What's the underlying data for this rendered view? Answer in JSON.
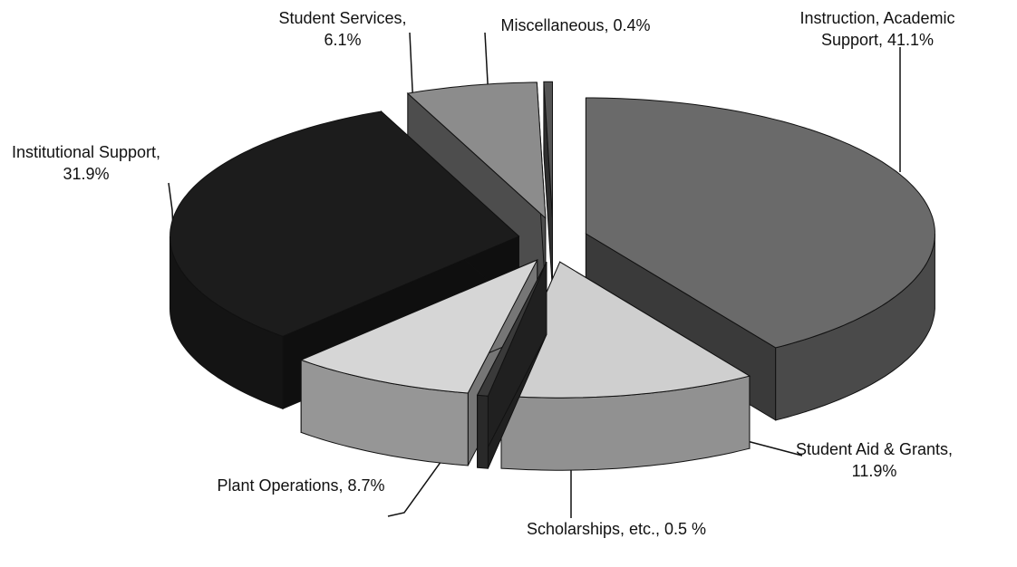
{
  "chart_data": {
    "type": "pie3d",
    "categories": [
      "Instruction,  Academic Support",
      "Student Aid & Grants",
      "Scholarships, etc.",
      "Plant Operations",
      "Institutional Support",
      "Student Services",
      "Miscellaneous"
    ],
    "values": [
      41.1,
      11.9,
      0.5,
      8.7,
      31.9,
      6.1,
      0.4
    ],
    "value_labels": [
      "Instruction,  Academic Support, 41.1%",
      "Student Aid & Grants, 11.9%",
      "Scholarships, etc., 0.5 %",
      "Plant Operations, 8.7%",
      "Institutional Support, 31.9%",
      "Student Services, 6.1%",
      "Miscellaneous, 0.4%"
    ],
    "colors": [
      "#6a6a6a",
      "#cfcfcf",
      "#3a3a3a",
      "#d6d6d6",
      "#1c1c1c",
      "#8c8c8c",
      "#555555"
    ]
  }
}
